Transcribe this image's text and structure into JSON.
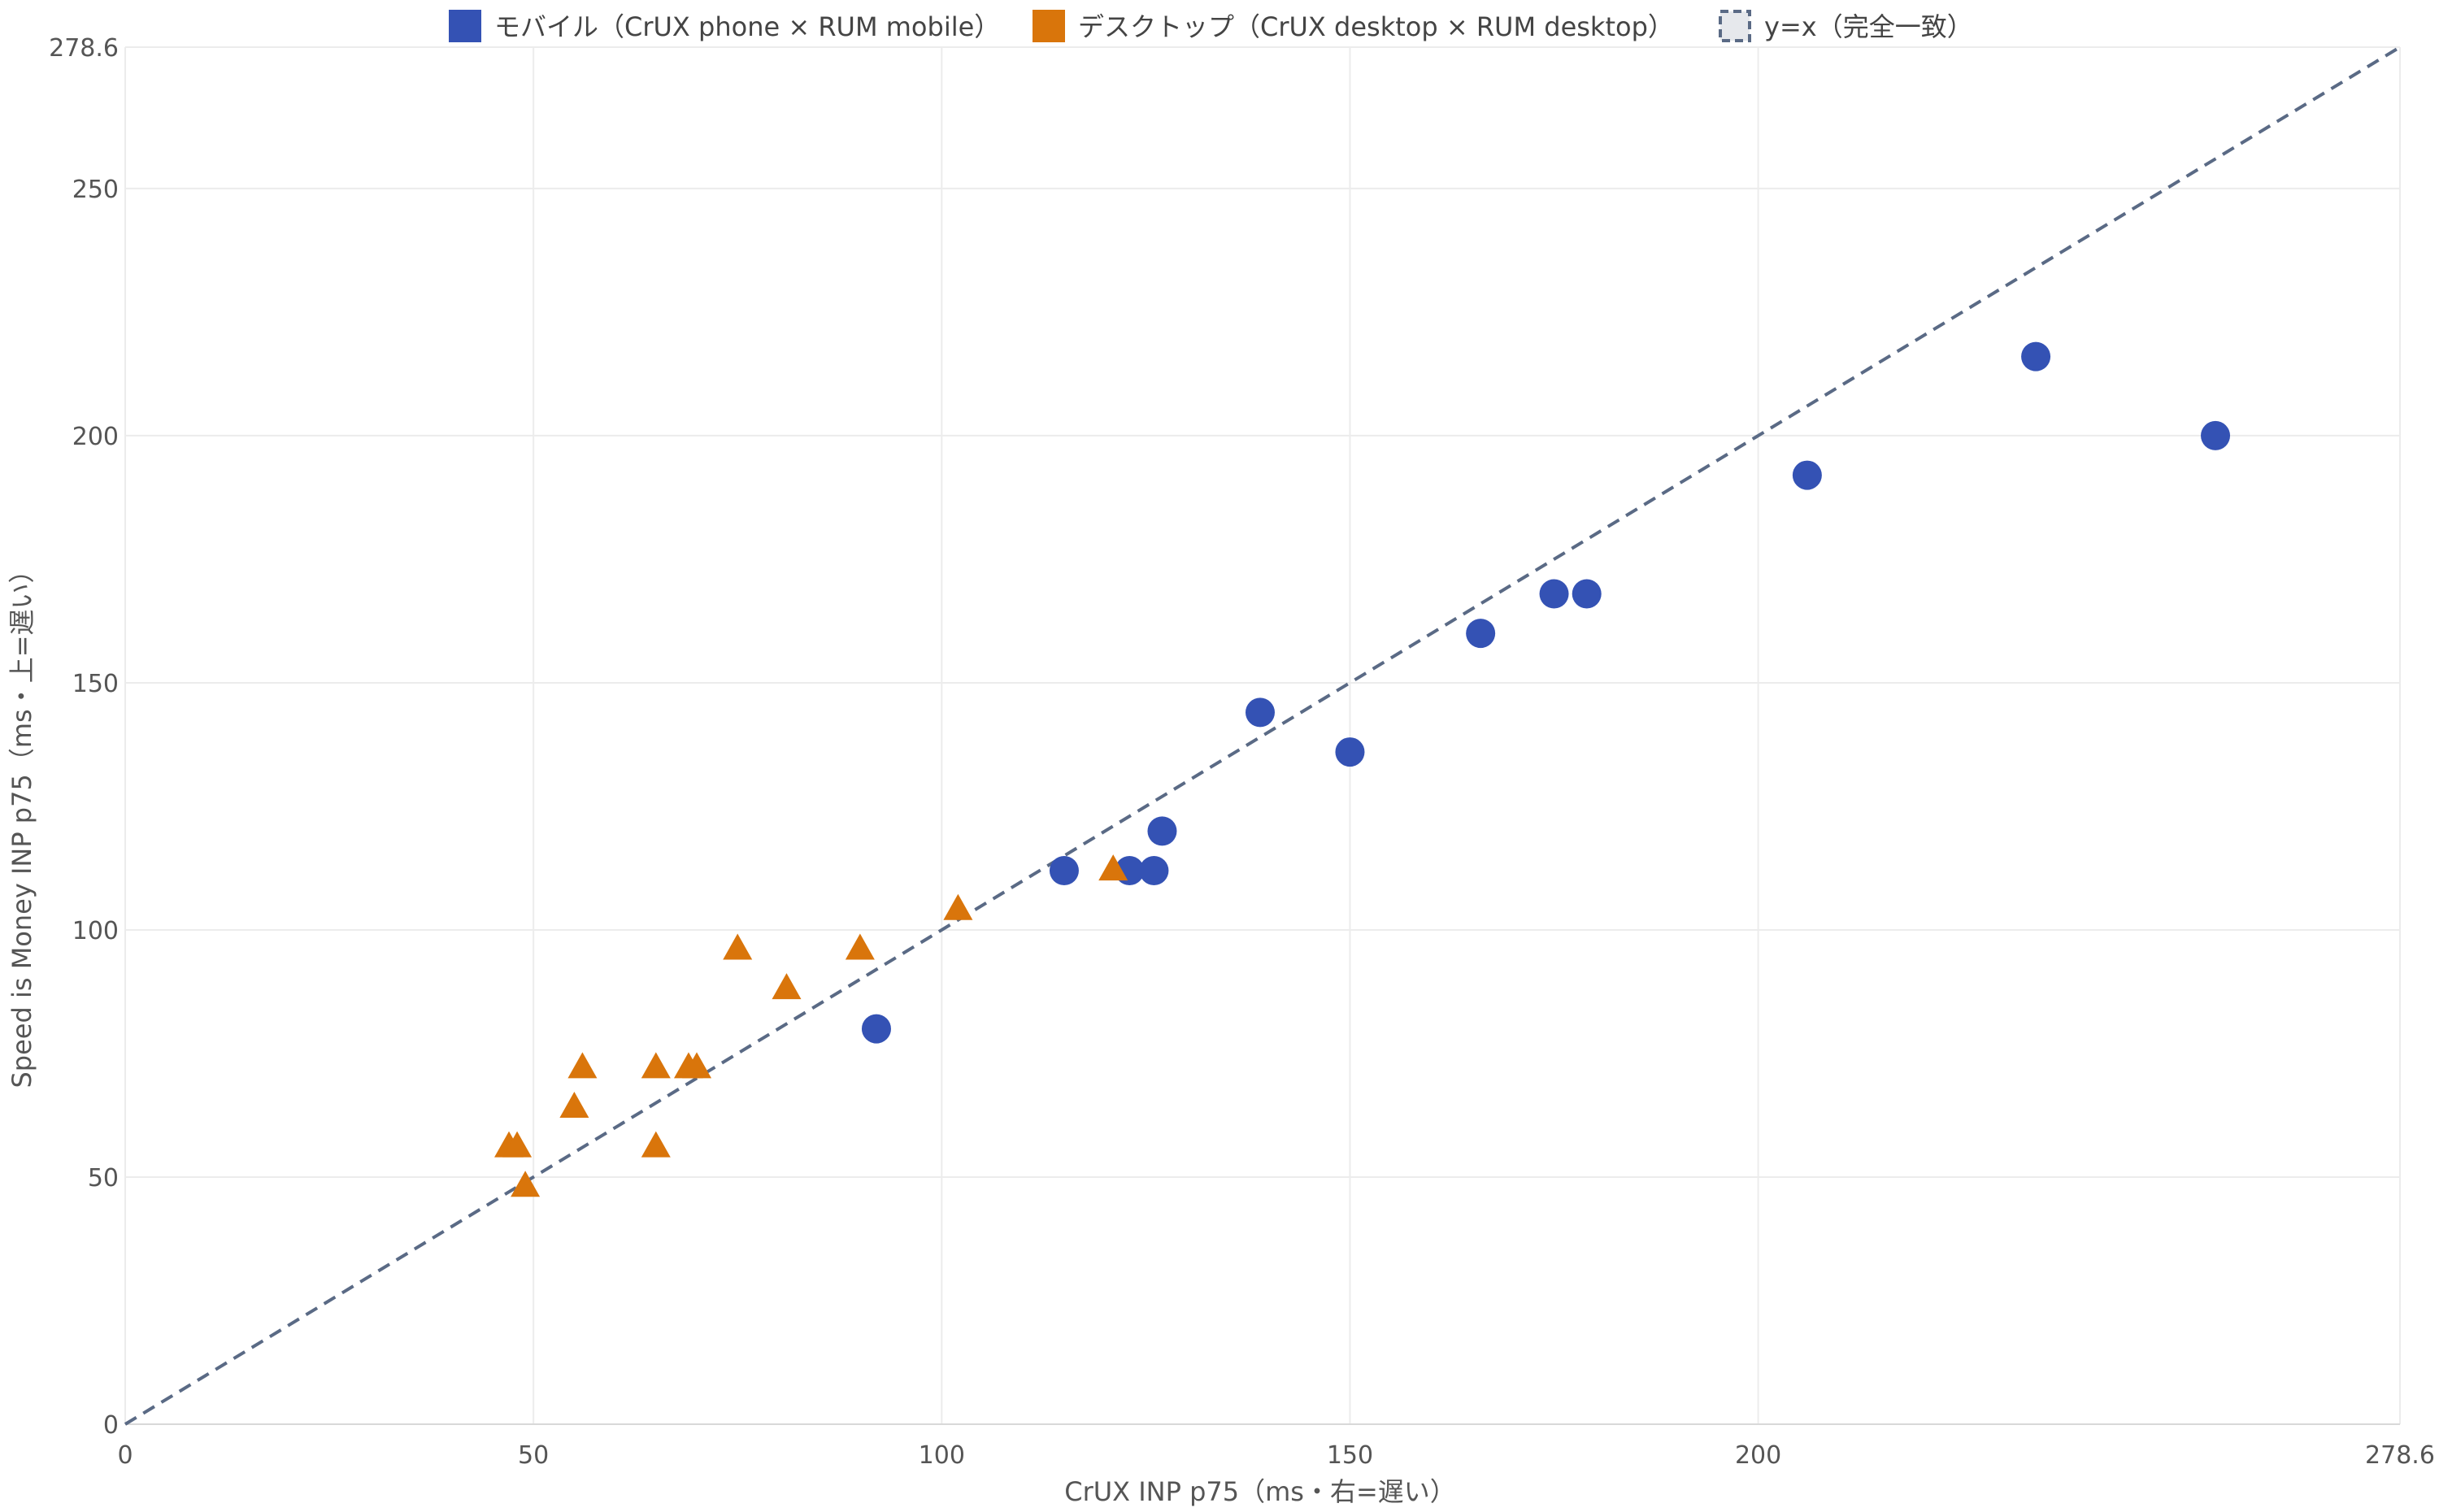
{
  "chart_data": {
    "type": "scatter",
    "xlabel": "CrUX INP p75（ms・右=遅い）",
    "ylabel": "Speed is Money INP p75（ms・上=遅い）",
    "xlim": [
      0,
      278.6
    ],
    "ylim": [
      0,
      278.6
    ],
    "x_ticks": [
      0,
      50,
      100,
      150,
      200,
      278.6
    ],
    "y_ticks": [
      0,
      50,
      100,
      150,
      200,
      250,
      278.6
    ],
    "grid": true,
    "legend_position": "top-center",
    "series": [
      {
        "name": "モバイル（CrUX phone × RUM mobile）",
        "marker": "circle",
        "color": "#3452b4",
        "points": [
          {
            "x": 92,
            "y": 80
          },
          {
            "x": 115,
            "y": 112
          },
          {
            "x": 123,
            "y": 112
          },
          {
            "x": 126,
            "y": 112
          },
          {
            "x": 127,
            "y": 120
          },
          {
            "x": 139,
            "y": 144
          },
          {
            "x": 150,
            "y": 136
          },
          {
            "x": 166,
            "y": 160
          },
          {
            "x": 175,
            "y": 168
          },
          {
            "x": 179,
            "y": 168
          },
          {
            "x": 206,
            "y": 192
          },
          {
            "x": 234,
            "y": 216
          },
          {
            "x": 256,
            "y": 200
          }
        ]
      },
      {
        "name": "デスクトップ（CrUX desktop × RUM desktop）",
        "marker": "triangle",
        "color": "#d9750b",
        "points": [
          {
            "x": 47,
            "y": 56
          },
          {
            "x": 48,
            "y": 56
          },
          {
            "x": 49,
            "y": 48
          },
          {
            "x": 55,
            "y": 64
          },
          {
            "x": 56,
            "y": 72
          },
          {
            "x": 65,
            "y": 72
          },
          {
            "x": 65,
            "y": 56
          },
          {
            "x": 69,
            "y": 72
          },
          {
            "x": 70,
            "y": 72
          },
          {
            "x": 75,
            "y": 96
          },
          {
            "x": 81,
            "y": 88
          },
          {
            "x": 90,
            "y": 96
          },
          {
            "x": 102,
            "y": 104
          },
          {
            "x": 121,
            "y": 112
          }
        ]
      }
    ],
    "reference_line": {
      "name": "y=x（完全一致）",
      "style": "dashed",
      "color": "#5a6a85",
      "from": [
        0,
        0
      ],
      "to": [
        278.6,
        278.6
      ]
    }
  }
}
